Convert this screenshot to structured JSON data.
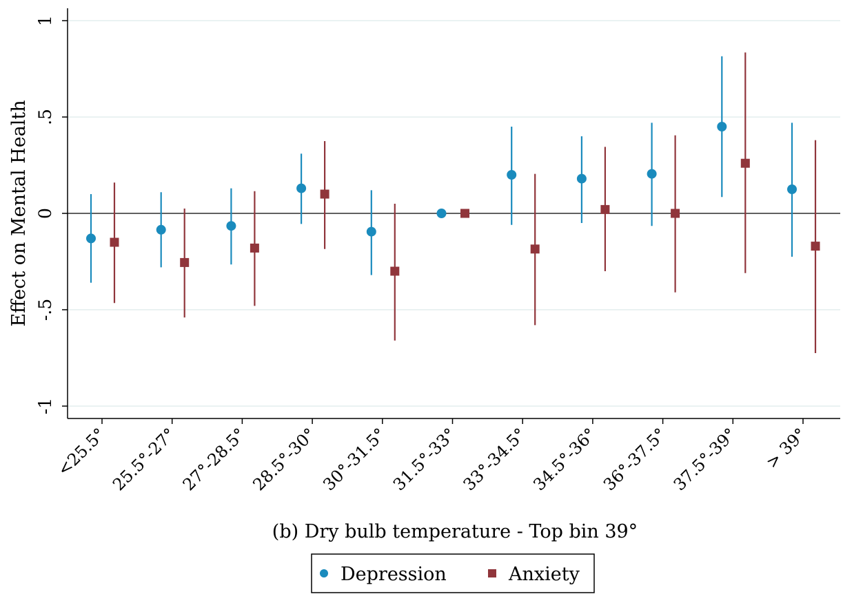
{
  "chart_data": {
    "type": "scatter",
    "xlabel": "(b) Dry bulb temperature - Top bin 39°",
    "ylabel": "Effect on Mental Health",
    "ylim": [
      -1,
      1
    ],
    "yticks": [
      1,
      0.5,
      0,
      -0.5,
      -1
    ],
    "ytick_labels": [
      "1",
      ".5",
      "0",
      "-.5",
      "-1"
    ],
    "grid": true,
    "zero_line": true,
    "legend_position": "bottom",
    "categories": [
      "<25.5°",
      "25.5°-27°",
      "27°-28.5°",
      "28.5°-30°",
      "30°-31.5°",
      "31.5°-33°",
      "33°-34.5°",
      "34.5°-36°",
      "36°-37.5°",
      "37.5°-39°",
      "> 39°"
    ],
    "series": [
      {
        "name": "Depression",
        "color": "#1a8bbd",
        "marker": "circle",
        "values": [
          -0.13,
          -0.085,
          -0.065,
          0.13,
          -0.095,
          0.0,
          0.2,
          0.18,
          0.205,
          0.45,
          0.125
        ],
        "lower": [
          -0.36,
          -0.28,
          -0.265,
          -0.055,
          -0.32,
          0.0,
          -0.06,
          -0.05,
          -0.065,
          0.085,
          -0.225
        ],
        "upper": [
          0.1,
          0.11,
          0.13,
          0.31,
          0.12,
          0.0,
          0.45,
          0.4,
          0.47,
          0.815,
          0.47
        ]
      },
      {
        "name": "Anxiety",
        "color": "#90353b",
        "marker": "square",
        "values": [
          -0.15,
          -0.255,
          -0.18,
          0.1,
          -0.3,
          0.0,
          -0.185,
          0.02,
          0.0,
          0.26,
          -0.17
        ],
        "lower": [
          -0.465,
          -0.54,
          -0.48,
          -0.185,
          -0.66,
          0.0,
          -0.58,
          -0.3,
          -0.41,
          -0.31,
          -0.725
        ],
        "upper": [
          0.16,
          0.025,
          0.115,
          0.375,
          0.05,
          0.0,
          0.205,
          0.345,
          0.405,
          0.835,
          0.38
        ]
      }
    ]
  }
}
